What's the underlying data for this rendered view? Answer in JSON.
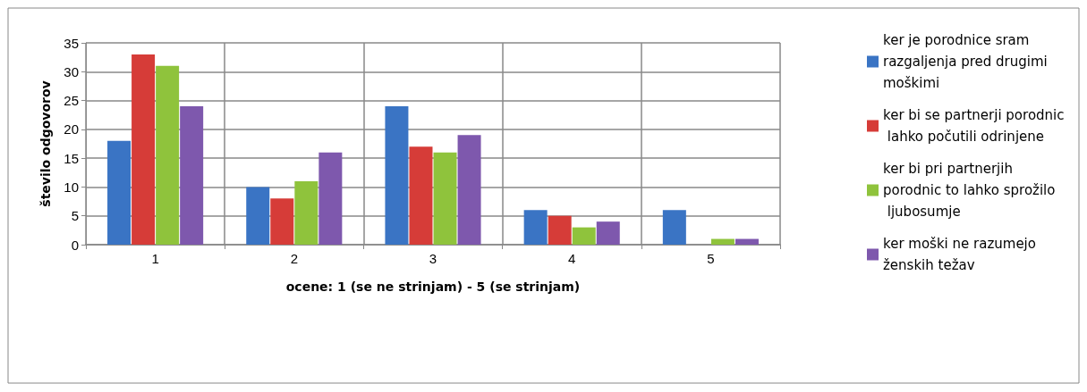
{
  "chart_data": {
    "type": "bar",
    "xlabel": "ocene: 1 (se ne strinjam) - 5 (se strinjam)",
    "ylabel": "število odgovorov",
    "categories": [
      "1",
      "2",
      "3",
      "4",
      "5"
    ],
    "series": [
      {
        "name": "ker je porodnice sram razgaljenja pred drugimi moškimi",
        "color": "#3a74c4",
        "values": [
          18,
          10,
          24,
          6,
          6
        ]
      },
      {
        "name": "ker bi se partnerji porodnic lahko počutili odrinjene",
        "color": "#d63c38",
        "values": [
          33,
          8,
          17,
          5,
          0
        ]
      },
      {
        "name": "ker bi pri partnerjih porodnic to lahko sprožilo ljubosumje",
        "color": "#8fc33c",
        "values": [
          31,
          11,
          16,
          3,
          1
        ]
      },
      {
        "name": "ker moški ne razumejo ženskih težav",
        "color": "#7e58ad",
        "values": [
          24,
          16,
          19,
          4,
          1
        ]
      }
    ],
    "ylim": [
      0,
      35
    ],
    "yticks": [
      0,
      5,
      10,
      15,
      20,
      25,
      30,
      35
    ],
    "grid": true,
    "legend": "right"
  }
}
